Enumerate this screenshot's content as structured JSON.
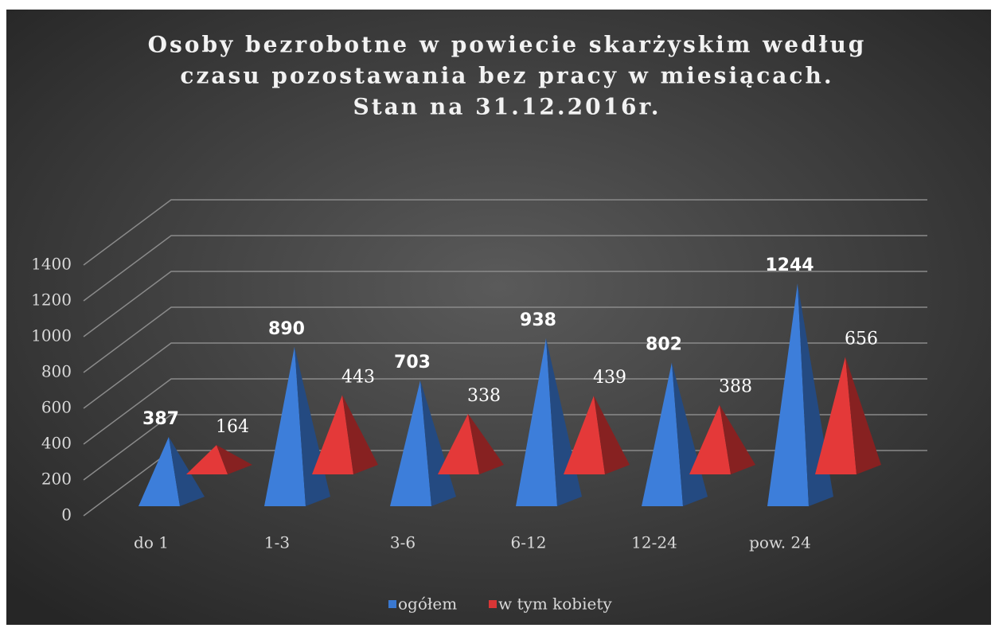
{
  "chart_data": {
    "type": "pyramid3d",
    "title": [
      "Osoby bezrobotne w powiecie skarżyskim według",
      "czasu pozostawania bez pracy w miesiącach.",
      "Stan na 31.12.2016r."
    ],
    "categories": [
      "do 1",
      "1-3",
      "3-6",
      "6-12",
      "12-24",
      "pow. 24"
    ],
    "series": [
      {
        "name": "ogółem",
        "color": "#3a78d0",
        "values": [
          387,
          890,
          703,
          938,
          802,
          1244
        ]
      },
      {
        "name": "w tym kobiety",
        "color": "#d93636",
        "values": [
          164,
          443,
          338,
          439,
          388,
          656
        ]
      }
    ],
    "ylim": [
      0,
      1400
    ],
    "yticks": [
      0,
      200,
      400,
      600,
      800,
      1000,
      1200,
      1400
    ],
    "grid": true,
    "legend": "bottom"
  }
}
